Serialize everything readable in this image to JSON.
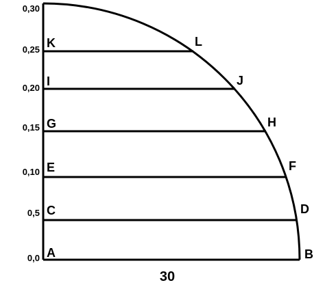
{
  "diagram": {
    "y_axis_labels": [
      "0,30",
      "0,25",
      "0,20",
      "0,15",
      "0,10",
      "0,5",
      "0,0"
    ],
    "point_labels": {
      "A": "A",
      "B": "B",
      "C": "C",
      "D": "D",
      "E": "E",
      "F": "F",
      "G": "G",
      "H": "H",
      "I": "I",
      "J": "J",
      "K": "K",
      "L": "L"
    },
    "base_label": "30",
    "colors": {
      "stroke": "#000000",
      "background": "#ffffff"
    }
  }
}
